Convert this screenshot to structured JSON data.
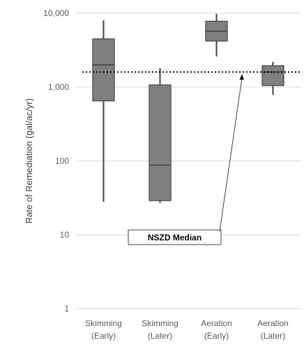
{
  "chart_data": {
    "type": "boxplot",
    "title": "",
    "ylabel": "Rate of Remediation (gal/ac/yr)",
    "xlabel": "",
    "yscale": "log",
    "ylim": [
      1,
      10000
    ],
    "yticks": [
      1,
      10,
      100,
      1000,
      10000
    ],
    "ytick_labels": [
      "1",
      "10",
      "100",
      "1,000",
      "10,000"
    ],
    "grid": "horizontal",
    "categories": [
      {
        "line1": "Skimming",
        "line2": "(Early)"
      },
      {
        "line1": "Skimming",
        "line2": "(Later)"
      },
      {
        "line1": "Aeration",
        "line2": "(Early)"
      },
      {
        "line1": "Aeration",
        "line2": "(Later)"
      }
    ],
    "boxes": [
      {
        "min": 28,
        "q1": 650,
        "median": 2000,
        "q3": 4500,
        "max": 8000
      },
      {
        "min": 27,
        "q1": 29,
        "median": 88,
        "q3": 1070,
        "max": 1800
      },
      {
        "min": 2600,
        "q1": 4200,
        "median": 5700,
        "q3": 7800,
        "max": 9800
      },
      {
        "min": 780,
        "q1": 1050,
        "median": 1600,
        "q3": 1950,
        "max": 2200
      }
    ],
    "reference_line": {
      "value": 1600,
      "style": "dotted"
    },
    "annotation": {
      "text": "NSZD Median",
      "points_to": 1600
    },
    "colors": {
      "box_fill": "#808080",
      "box_stroke": "#404040",
      "whisker": "#404040",
      "grid": "#d9d9d9",
      "reference": "#000000"
    }
  }
}
